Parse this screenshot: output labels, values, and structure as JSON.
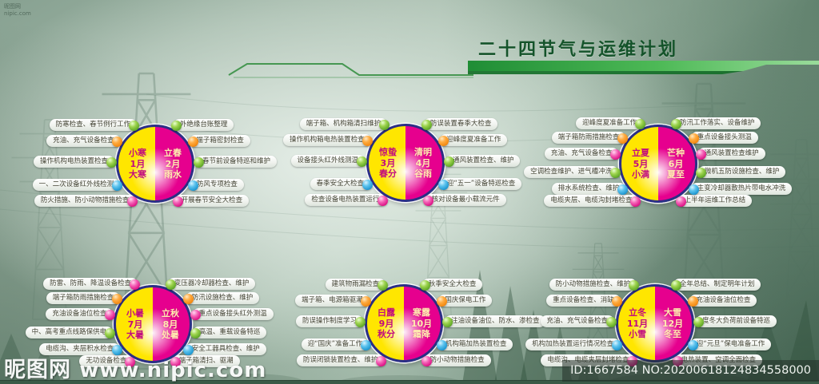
{
  "title": "二十四节气与运维计划",
  "corner_note": {
    "line1": "昵图网",
    "line2": "nipic.com"
  },
  "watermark": {
    "brand": "昵图网",
    "site": "www.nipic.com",
    "id_text": "ID:1667584 NO:20200618124834558000"
  },
  "colors": {
    "yellow_half": "#ffe600",
    "magenta_half": "#e6008e",
    "ring_navy": "#2b2f86",
    "title_green": "#14532a",
    "banner_green": "#35a546",
    "ball_green": "#6fb32a",
    "ball_orange": "#f7941e",
    "ball_blue": "#29abe2",
    "ball_pink": "#e0077f"
  },
  "groups": [
    {
      "left_terms": [
        "小寒",
        "1月",
        "大寒"
      ],
      "right_terms": [
        "立春",
        "2月",
        "雨水"
      ],
      "left_labels": [
        {
          "text": "防寒检查、春节例行工作",
          "ball": "green"
        },
        {
          "text": "充油、充气设备检查",
          "ball": "orange"
        },
        {
          "text": "操作机构电热装置检查",
          "ball": "green"
        },
        {
          "text": "一、二次设备红外线检测",
          "ball": "blue"
        },
        {
          "text": "防火措施、防小动物措施检查",
          "ball": "pink"
        }
      ],
      "right_labels": [
        {
          "text": "外绝缘台账整理",
          "ball": "green"
        },
        {
          "text": "端子箱密封检查",
          "ball": "orange"
        },
        {
          "text": "春节前设备特巡和维护",
          "ball": "green"
        },
        {
          "text": "防风专项检查",
          "ball": "blue"
        },
        {
          "text": "开展春节安全大检查",
          "ball": "pink"
        }
      ]
    },
    {
      "left_terms": [
        "惊蛰",
        "3月",
        "春分"
      ],
      "right_terms": [
        "清明",
        "4月",
        "谷雨"
      ],
      "left_labels": [
        {
          "text": "端子箱、机构箱清扫维护",
          "ball": "green"
        },
        {
          "text": "操作机构箱电热装置检查",
          "ball": "orange"
        },
        {
          "text": "设备接头红外线测温",
          "ball": "green"
        },
        {
          "text": "春季安全大检查",
          "ball": "blue"
        },
        {
          "text": "检查设备电热装置运行",
          "ball": "pink"
        }
      ],
      "right_labels": [
        {
          "text": "防误装置春季大检查",
          "ball": "green"
        },
        {
          "text": "迎峰度夏准备工作",
          "ball": "orange"
        },
        {
          "text": "通风装置检查、维护",
          "ball": "green"
        },
        {
          "text": "迎“五一”设备特巡检查",
          "ball": "blue"
        },
        {
          "text": "核对设备最小载流元件",
          "ball": "pink"
        }
      ]
    },
    {
      "left_terms": [
        "立夏",
        "5月",
        "小满"
      ],
      "right_terms": [
        "芒种",
        "6月",
        "夏至"
      ],
      "left_labels": [
        {
          "text": "迎峰度夏准备工作",
          "ball": "green"
        },
        {
          "text": "端子箱防雨措施检查",
          "ball": "orange"
        },
        {
          "text": "充油、充气设备检查",
          "ball": "pink"
        },
        {
          "text": "空调检查维护、进气槽冲洗",
          "ball": "green"
        },
        {
          "text": "排水系统检查、维护",
          "ball": "blue"
        },
        {
          "text": "电缆夹层、电缆沟封堵检查",
          "ball": "pink"
        }
      ],
      "right_labels": [
        {
          "text": "防汛工作落实、设备维护",
          "ball": "green"
        },
        {
          "text": "重点设备接头测温",
          "ball": "orange"
        },
        {
          "text": "通风装置检查维护",
          "ball": "pink"
        },
        {
          "text": "微机五防设施检查、维护",
          "ball": "green"
        },
        {
          "text": "主变冷却器散热片带电水冲洗",
          "ball": "blue"
        },
        {
          "text": "上半年运维工作总结",
          "ball": "pink"
        }
      ]
    },
    {
      "left_terms": [
        "小暑",
        "7月",
        "大暑"
      ],
      "right_terms": [
        "立秋",
        "8月",
        "处暑"
      ],
      "left_labels": [
        {
          "text": "防雷、防雨、降温设备检查",
          "ball": "pink"
        },
        {
          "text": "端子箱防雨措施检查",
          "ball": "orange"
        },
        {
          "text": "充油设备油位检查",
          "ball": "pink"
        },
        {
          "text": "中、高考重点线路保供电",
          "ball": "green"
        },
        {
          "text": "电缆沟、夹层积水检查",
          "ball": "blue"
        },
        {
          "text": "无功设备检查",
          "ball": "pink"
        }
      ],
      "right_labels": [
        {
          "text": "变压器冷却器检查、维护",
          "ball": "green"
        },
        {
          "text": "防汛设施检查、维护",
          "ball": "orange"
        },
        {
          "text": "重点设备接头红外测温",
          "ball": "pink"
        },
        {
          "text": "高温、重载设备特巡",
          "ball": "green"
        },
        {
          "text": "安全工器具检查、维护",
          "ball": "blue"
        },
        {
          "text": "端子箱清扫、驱潮",
          "ball": "pink"
        }
      ]
    },
    {
      "left_terms": [
        "白露",
        "9月",
        "秋分"
      ],
      "right_terms": [
        "寒露",
        "10月",
        "霜降"
      ],
      "left_labels": [
        {
          "text": "建筑物雨漏检查",
          "ball": "green"
        },
        {
          "text": "端子箱、电源箱驱潮",
          "ball": "orange"
        },
        {
          "text": "防误操作制度学习",
          "ball": "green"
        },
        {
          "text": "迎“国庆”准备工作",
          "ball": "blue"
        },
        {
          "text": "防误闭锁装置检查、维护",
          "ball": "pink"
        }
      ],
      "right_labels": [
        {
          "text": "秋季安全大检查",
          "ball": "green"
        },
        {
          "text": "国庆保电工作",
          "ball": "orange"
        },
        {
          "text": "注油设备油位、防水、渗检查",
          "ball": "green"
        },
        {
          "text": "机构箱加热装置检查",
          "ball": "blue"
        },
        {
          "text": "防小动物措施检查",
          "ball": "pink"
        }
      ]
    },
    {
      "left_terms": [
        "立冬",
        "11月",
        "小雪"
      ],
      "right_terms": [
        "大雪",
        "12月",
        "冬至"
      ],
      "left_labels": [
        {
          "text": "防小动物措施检查、维护",
          "ball": "green"
        },
        {
          "text": "重点设备检查、消缺",
          "ball": "orange"
        },
        {
          "text": "充油、充气设备检查",
          "ball": "green"
        },
        {
          "text": "机构加热装置运行情况检查",
          "ball": "blue"
        },
        {
          "text": "电缆沟、电缆夹层封堵检查",
          "ball": "pink"
        }
      ],
      "right_labels": [
        {
          "text": "全年总结、制定明年计划",
          "ball": "green"
        },
        {
          "text": "充油设备油位检查",
          "ball": "orange"
        },
        {
          "text": "度冬大负荷前设备特巡",
          "ball": "green"
        },
        {
          "text": "迎“元旦”保电准备工作",
          "ball": "blue"
        },
        {
          "text": "电热装置、空调全面检查",
          "ball": "pink"
        }
      ]
    }
  ]
}
